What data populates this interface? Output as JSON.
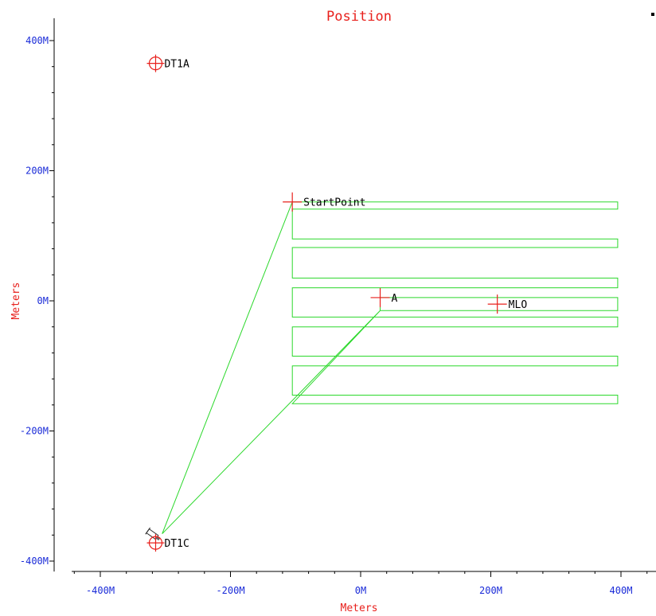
{
  "chart_data": {
    "type": "scatter",
    "title": "Position",
    "xlabel": "Meters",
    "ylabel": "Meters",
    "xlim": [
      -450,
      450
    ],
    "ylim": [
      -410,
      410
    ],
    "x_ticks": [
      {
        "value": -400,
        "label": "-400M"
      },
      {
        "value": -200,
        "label": "-200M"
      },
      {
        "value": 0,
        "label": "0M"
      },
      {
        "value": 200,
        "label": "200M"
      },
      {
        "value": 400,
        "label": "400M"
      }
    ],
    "y_ticks": [
      {
        "value": 400,
        "label": "400M"
      },
      {
        "value": 200,
        "label": "200M"
      },
      {
        "value": 0,
        "label": "0M"
      },
      {
        "value": -200,
        "label": "-200M"
      },
      {
        "value": -400,
        "label": "-400M"
      }
    ],
    "points": [
      {
        "name": "DT1A",
        "x": -315,
        "y": 365,
        "marker": "circle-cross"
      },
      {
        "name": "DT1C",
        "x": -315,
        "y": -372,
        "marker": "circle-cross"
      },
      {
        "name": "StartPoint",
        "x": -105,
        "y": 152,
        "marker": "cross"
      },
      {
        "name": "A",
        "x": 30,
        "y": 5,
        "marker": "cross"
      },
      {
        "name": "MLO",
        "x": 210,
        "y": -5,
        "marker": "cross"
      }
    ],
    "vehicle": {
      "x": -318,
      "y": -360
    },
    "path": [
      [
        -305,
        -358
      ],
      [
        -105,
        152
      ],
      [
        -105,
        152
      ],
      [
        395,
        152
      ],
      [
        395,
        141
      ],
      [
        -105,
        141
      ],
      [
        -105,
        95
      ],
      [
        395,
        95
      ],
      [
        395,
        82
      ],
      [
        -105,
        82
      ],
      [
        -105,
        35
      ],
      [
        395,
        35
      ],
      [
        395,
        20
      ],
      [
        -105,
        20
      ],
      [
        -105,
        -25
      ],
      [
        395,
        -25
      ],
      [
        395,
        -40
      ],
      [
        -105,
        -40
      ],
      [
        -105,
        -85
      ],
      [
        395,
        -85
      ],
      [
        395,
        -100
      ],
      [
        -105,
        -100
      ],
      [
        -105,
        -145
      ],
      [
        395,
        -145
      ],
      [
        395,
        -158
      ],
      [
        -105,
        -158
      ],
      [
        30,
        -15
      ],
      [
        30,
        5
      ],
      [
        395,
        5
      ],
      [
        395,
        -15
      ],
      [
        30,
        -15
      ],
      [
        -305,
        -358
      ]
    ],
    "grid": false,
    "colors": {
      "path": "#2bd82b",
      "marker": "#e8201c",
      "tick": "#1a2bd8",
      "title": "#e8201c"
    }
  }
}
